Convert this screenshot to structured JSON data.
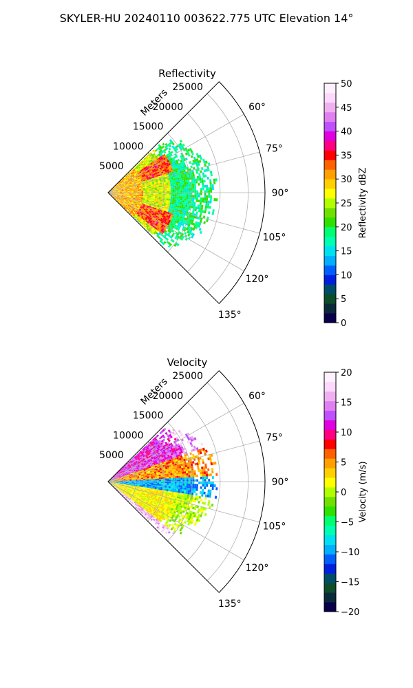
{
  "figure": {
    "suptitle": "SKYLER-HU  20240110  003622.775 UTC Elevation 14°"
  },
  "chart_data": [
    {
      "type": "polar_sector",
      "title": "Reflectivity",
      "range_label": "Meters",
      "range_ticks": [
        5000,
        10000,
        15000,
        20000,
        25000
      ],
      "range_max": 28000,
      "angle_ticks": [
        "60°",
        "75°",
        "90°",
        "105°",
        "120°",
        "135°"
      ],
      "angle_range_deg": [
        45,
        135
      ],
      "grid": true,
      "colorbar": {
        "label": "Reflectivity dBZ",
        "min": 0,
        "max": 50,
        "ticks": [
          "0",
          "5",
          "10",
          "15",
          "20",
          "25",
          "30",
          "35",
          "40",
          "45",
          "50"
        ],
        "colors": [
          "#08004a",
          "#0a2a3a",
          "#0d4d2a",
          "#004d6a",
          "#0020e0",
          "#0060ff",
          "#00b0ff",
          "#00e0f0",
          "#00ffb0",
          "#00ff70",
          "#30e000",
          "#70e000",
          "#b0ff00",
          "#ffff00",
          "#ffd000",
          "#ffa000",
          "#ff6000",
          "#ff0000",
          "#ff0080",
          "#e000e0",
          "#c050ff",
          "#e080f0",
          "#f0b0f0",
          "#fcd8fc",
          "#fff0ff"
        ]
      },
      "data_description": [
        {
          "az_deg": [
            47,
            133
          ],
          "range_m": [
            0,
            6000
          ],
          "dBZ": 28
        },
        {
          "az_deg": [
            55,
            72
          ],
          "range_m": [
            6000,
            11000
          ],
          "dBZ": 34
        },
        {
          "az_deg": [
            108,
            127
          ],
          "range_m": [
            6000,
            12000
          ],
          "dBZ": 34
        },
        {
          "az_deg": [
            50,
            130
          ],
          "range_m": [
            11000,
            18000
          ],
          "dBZ": 18
        }
      ]
    },
    {
      "type": "polar_sector",
      "title": "Velocity",
      "range_label": "Meters",
      "range_ticks": [
        5000,
        10000,
        15000,
        20000,
        25000
      ],
      "range_max": 28000,
      "angle_ticks": [
        "60°",
        "75°",
        "90°",
        "105°",
        "120°",
        "135°"
      ],
      "angle_range_deg": [
        45,
        135
      ],
      "grid": true,
      "colorbar": {
        "label": "Velocity (m/s)",
        "min": -20,
        "max": 20,
        "ticks": [
          "−20",
          "−15",
          "−10",
          "−5",
          "0",
          "5",
          "10",
          "15",
          "20"
        ],
        "colors": [
          "#08004a",
          "#0a2a3a",
          "#0d4d2a",
          "#004d6a",
          "#0020e0",
          "#0060ff",
          "#00b0ff",
          "#00e0f0",
          "#00ffb0",
          "#00ff70",
          "#30e000",
          "#70e000",
          "#b0ff00",
          "#ffff00",
          "#ffd000",
          "#ffa000",
          "#ff6000",
          "#ff0000",
          "#ff0080",
          "#e000e0",
          "#c050ff",
          "#e080f0",
          "#f0b0f0",
          "#fcd8fc",
          "#fff0ff"
        ]
      },
      "data_description": [
        {
          "az_deg": [
            50,
            70
          ],
          "range_m": [
            3000,
            18000
          ],
          "velocity_ms": 12
        },
        {
          "az_deg": [
            72,
            88
          ],
          "range_m": [
            0,
            18000
          ],
          "velocity_ms": 4
        },
        {
          "az_deg": [
            88,
            98
          ],
          "range_m": [
            0,
            15000
          ],
          "velocity_ms": -10
        },
        {
          "az_deg": [
            100,
            128
          ],
          "range_m": [
            0,
            16000
          ],
          "velocity_ms": 2
        },
        {
          "az_deg": [
            128,
            133
          ],
          "range_m": [
            2000,
            16000
          ],
          "velocity_ms": 16
        }
      ]
    }
  ]
}
